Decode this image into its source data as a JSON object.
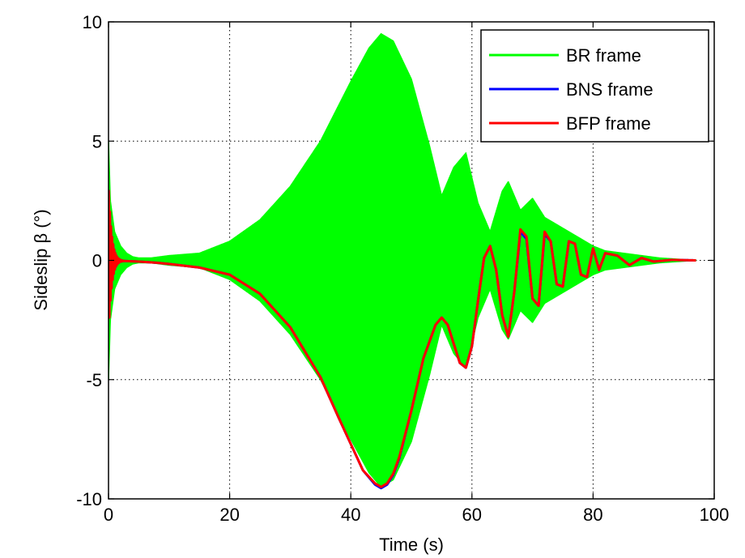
{
  "chart_data": {
    "type": "line",
    "title": "",
    "xlabel": "Time (s)",
    "ylabel": "Sideslip β (°)",
    "xlim": [
      0,
      100
    ],
    "ylim": [
      -10,
      10
    ],
    "xticks": [
      0,
      20,
      40,
      60,
      80,
      100
    ],
    "xtick_labels": [
      "0",
      "20",
      "40",
      "60",
      "80",
      "100"
    ],
    "yticks": [
      -10,
      -5,
      0,
      5,
      10
    ],
    "ytick_labels": [
      "-10",
      "-5",
      "0",
      "5",
      "10"
    ],
    "grid": true,
    "legend_position": "top-right",
    "colors": {
      "br": "#00ff00",
      "bns": "#0000ff",
      "bfp": "#ff0000"
    },
    "series": [
      {
        "name": "BR frame",
        "kind": "band",
        "x": [
          0,
          0.3,
          1,
          2,
          3,
          4,
          5,
          7,
          10,
          15,
          20,
          25,
          30,
          35,
          40,
          43,
          45,
          47,
          50,
          53,
          55,
          57,
          59,
          61,
          63,
          65,
          66,
          68,
          70,
          72,
          74,
          76,
          78,
          80,
          82,
          85,
          88,
          91,
          94,
          97
        ],
        "upper": [
          5,
          2.5,
          1.2,
          0.6,
          0.3,
          0.15,
          0.1,
          0.1,
          0.2,
          0.3,
          0.8,
          1.7,
          3.1,
          5.0,
          7.5,
          8.9,
          9.5,
          9.2,
          7.6,
          4.8,
          2.7,
          3.9,
          4.5,
          2.4,
          1.2,
          2.9,
          3.3,
          2.1,
          2.6,
          1.8,
          1.5,
          1.2,
          0.9,
          0.6,
          0.4,
          0.3,
          0.2,
          0.1,
          0.05,
          0
        ],
        "lower": [
          -5,
          -2.5,
          -1.2,
          -0.6,
          -0.3,
          -0.15,
          -0.1,
          -0.1,
          -0.2,
          -0.3,
          -0.8,
          -1.7,
          -3.1,
          -5.0,
          -7.5,
          -8.9,
          -9.5,
          -9.2,
          -7.6,
          -4.8,
          -2.7,
          -3.9,
          -4.5,
          -2.4,
          -1.2,
          -2.9,
          -3.3,
          -2.1,
          -2.6,
          -1.8,
          -1.5,
          -1.2,
          -0.9,
          -0.6,
          -0.4,
          -0.3,
          -0.2,
          -0.1,
          -0.05,
          0
        ]
      },
      {
        "name": "BNS frame",
        "x": [
          0,
          5,
          8,
          10,
          15,
          20,
          25,
          30,
          35,
          38,
          40,
          42,
          44,
          45,
          46,
          47,
          48,
          50,
          52,
          54,
          55,
          56,
          57,
          58,
          59,
          60,
          61,
          62,
          63,
          64,
          65,
          66,
          67,
          68,
          69,
          70,
          71,
          72,
          73,
          74,
          75,
          76,
          77,
          78,
          79,
          80,
          81,
          82,
          84,
          86,
          88,
          90,
          93,
          97
        ],
        "values": [
          0,
          -0.05,
          -0.1,
          -0.15,
          -0.3,
          -0.6,
          -1.4,
          -2.8,
          -4.9,
          -6.6,
          -7.7,
          -8.8,
          -9.4,
          -9.55,
          -9.4,
          -9.0,
          -8.3,
          -6.3,
          -4.1,
          -2.7,
          -2.4,
          -2.7,
          -3.5,
          -4.3,
          -4.5,
          -3.6,
          -1.7,
          0.1,
          0.6,
          -0.4,
          -2.3,
          -3.2,
          -1.3,
          1.2,
          0.9,
          -1.6,
          -1.9,
          1.1,
          0.8,
          -1.0,
          -1.1,
          0.8,
          0.7,
          -0.6,
          -0.7,
          0.5,
          -0.4,
          0.3,
          0.2,
          -0.2,
          0.1,
          -0.05,
          0.02,
          0
        ],
        "start_burst": {
          "until": 2.8,
          "amplitude": 3.2,
          "period": 0.18
        }
      },
      {
        "name": "BFP frame",
        "x": [
          0,
          5,
          8,
          10,
          15,
          20,
          25,
          30,
          35,
          38,
          40,
          42,
          44,
          45,
          46,
          47,
          48,
          50,
          52,
          54,
          55,
          56,
          57,
          58,
          59,
          60,
          61,
          62,
          63,
          64,
          65,
          66,
          67,
          68,
          69,
          70,
          71,
          72,
          73,
          74,
          75,
          76,
          77,
          78,
          79,
          80,
          81,
          82,
          84,
          86,
          88,
          90,
          93,
          97
        ],
        "values": [
          0,
          -0.05,
          -0.1,
          -0.15,
          -0.3,
          -0.6,
          -1.4,
          -2.8,
          -4.9,
          -6.6,
          -7.7,
          -8.8,
          -9.35,
          -9.5,
          -9.35,
          -8.95,
          -8.25,
          -6.3,
          -4.1,
          -2.7,
          -2.4,
          -2.7,
          -3.5,
          -4.3,
          -4.5,
          -3.6,
          -1.7,
          0.1,
          0.6,
          -0.4,
          -2.3,
          -3.2,
          -1.3,
          1.3,
          1.0,
          -1.6,
          -1.9,
          1.2,
          0.8,
          -1.0,
          -1.1,
          0.8,
          0.7,
          -0.6,
          -0.7,
          0.5,
          -0.4,
          0.3,
          0.2,
          -0.2,
          0.1,
          -0.05,
          0.02,
          0
        ],
        "start_burst": {
          "until": 2.8,
          "amplitude": 3.2,
          "period": 0.18
        }
      }
    ]
  }
}
